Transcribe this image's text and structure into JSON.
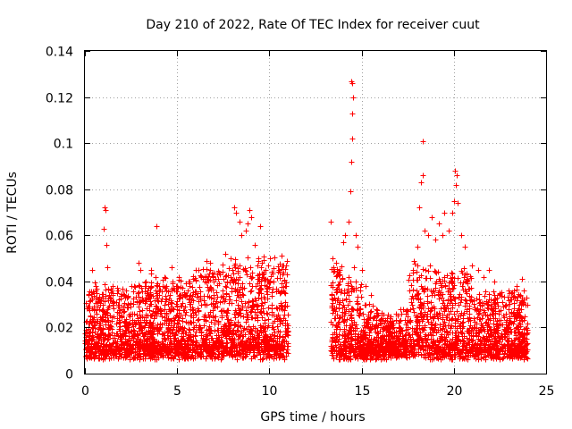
{
  "chart_data": {
    "type": "scatter",
    "title": "Day 210 of 2022, Rate Of TEC Index for receiver cuut",
    "xlabel": "GPS time / hours",
    "ylabel": "ROTI / TECUs",
    "xlim": [
      0,
      25
    ],
    "ylim": [
      0,
      0.14
    ],
    "xticks": [
      0,
      5,
      10,
      15,
      20,
      25
    ],
    "xtick_labels": [
      "0",
      "5",
      "10",
      "15",
      "20",
      "25"
    ],
    "yticks": [
      0,
      0.02,
      0.04,
      0.06,
      0.08,
      0.1,
      0.12,
      0.14
    ],
    "ytick_labels": [
      "0",
      "0.02",
      "0.04",
      "0.06",
      "0.08",
      "0.1",
      "0.12",
      "0.14"
    ],
    "grid": true,
    "marker": "+",
    "color": "#ff0000",
    "data_gap_hours": [
      11.0,
      13.3
    ],
    "series": [
      {
        "name": "ROTI",
        "points": [
          [
            0.1,
            0.018
          ],
          [
            0.3,
            0.025
          ],
          [
            0.4,
            0.045
          ],
          [
            0.6,
            0.038
          ],
          [
            0.8,
            0.03
          ],
          [
            1.0,
            0.063
          ],
          [
            1.05,
            0.072
          ],
          [
            1.1,
            0.071
          ],
          [
            1.15,
            0.056
          ],
          [
            1.2,
            0.046
          ],
          [
            1.5,
            0.035
          ],
          [
            1.8,
            0.03
          ],
          [
            2.0,
            0.028
          ],
          [
            2.3,
            0.033
          ],
          [
            2.5,
            0.038
          ],
          [
            2.9,
            0.048
          ],
          [
            3.0,
            0.045
          ],
          [
            3.3,
            0.04
          ],
          [
            3.6,
            0.045
          ],
          [
            3.9,
            0.064
          ],
          [
            4.0,
            0.038
          ],
          [
            4.3,
            0.042
          ],
          [
            4.7,
            0.046
          ],
          [
            5.0,
            0.038
          ],
          [
            5.3,
            0.034
          ],
          [
            5.6,
            0.04
          ],
          [
            6.0,
            0.045
          ],
          [
            6.3,
            0.042
          ],
          [
            6.6,
            0.049
          ],
          [
            6.8,
            0.048
          ],
          [
            7.0,
            0.044
          ],
          [
            7.3,
            0.043
          ],
          [
            7.6,
            0.052
          ],
          [
            7.9,
            0.05
          ],
          [
            8.1,
            0.072
          ],
          [
            8.2,
            0.07
          ],
          [
            8.4,
            0.066
          ],
          [
            8.5,
            0.06
          ],
          [
            8.7,
            0.062
          ],
          [
            8.8,
            0.065
          ],
          [
            8.9,
            0.071
          ],
          [
            9.0,
            0.068
          ],
          [
            9.2,
            0.056
          ],
          [
            9.4,
            0.05
          ],
          [
            9.5,
            0.064
          ],
          [
            9.8,
            0.045
          ],
          [
            10.0,
            0.04
          ],
          [
            10.2,
            0.04
          ],
          [
            10.5,
            0.045
          ],
          [
            10.7,
            0.047
          ],
          [
            10.9,
            0.038
          ],
          [
            13.3,
            0.066
          ],
          [
            13.4,
            0.05
          ],
          [
            13.6,
            0.048
          ],
          [
            13.8,
            0.045
          ],
          [
            14.0,
            0.057
          ],
          [
            14.1,
            0.06
          ],
          [
            14.3,
            0.066
          ],
          [
            14.4,
            0.079
          ],
          [
            14.45,
            0.092
          ],
          [
            14.5,
            0.102
          ],
          [
            14.5,
            0.113
          ],
          [
            14.55,
            0.12
          ],
          [
            14.5,
            0.126
          ],
          [
            14.45,
            0.127
          ],
          [
            14.6,
            0.046
          ],
          [
            14.7,
            0.06
          ],
          [
            14.8,
            0.055
          ],
          [
            15.0,
            0.045
          ],
          [
            15.2,
            0.038
          ],
          [
            15.5,
            0.034
          ],
          [
            15.8,
            0.028
          ],
          [
            16.0,
            0.022
          ],
          [
            16.5,
            0.02
          ],
          [
            17.0,
            0.02
          ],
          [
            17.5,
            0.025
          ],
          [
            17.8,
            0.045
          ],
          [
            18.0,
            0.055
          ],
          [
            18.1,
            0.072
          ],
          [
            18.2,
            0.083
          ],
          [
            18.3,
            0.086
          ],
          [
            18.3,
            0.101
          ],
          [
            18.4,
            0.062
          ],
          [
            18.6,
            0.06
          ],
          [
            18.8,
            0.068
          ],
          [
            19.0,
            0.058
          ],
          [
            19.2,
            0.065
          ],
          [
            19.4,
            0.06
          ],
          [
            19.5,
            0.07
          ],
          [
            19.7,
            0.062
          ],
          [
            19.9,
            0.07
          ],
          [
            20.0,
            0.075
          ],
          [
            20.05,
            0.088
          ],
          [
            20.1,
            0.082
          ],
          [
            20.15,
            0.086
          ],
          [
            20.2,
            0.074
          ],
          [
            20.4,
            0.06
          ],
          [
            20.6,
            0.055
          ],
          [
            21.0,
            0.047
          ],
          [
            21.3,
            0.045
          ],
          [
            21.6,
            0.042
          ],
          [
            21.9,
            0.045
          ],
          [
            22.2,
            0.04
          ],
          [
            22.5,
            0.035
          ],
          [
            22.8,
            0.03
          ],
          [
            23.1,
            0.035
          ],
          [
            23.4,
            0.038
          ],
          [
            23.7,
            0.041
          ],
          [
            23.9,
            0.03
          ]
        ]
      }
    ]
  }
}
